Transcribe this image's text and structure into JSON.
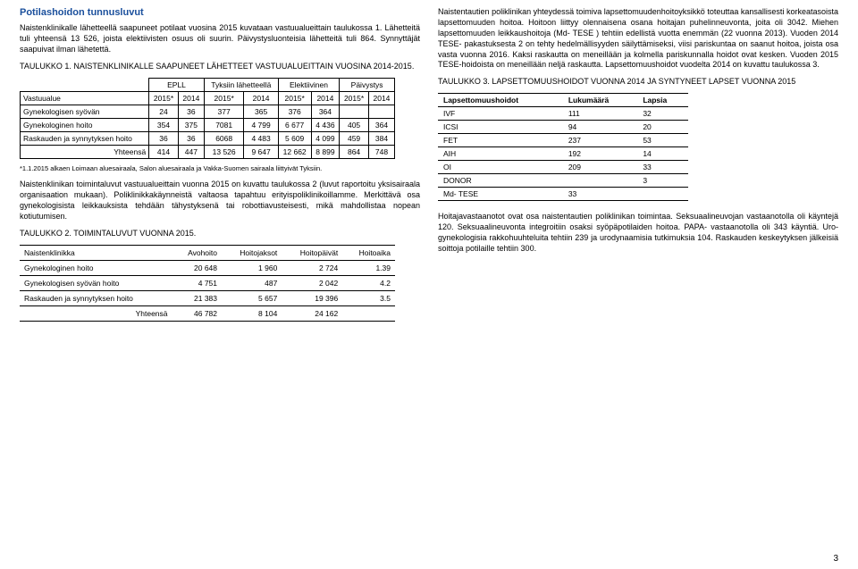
{
  "left": {
    "sectionTitle": "Potilashoidon tunnusluvut",
    "para1": "Naistenklinikalle lähetteellä saapuneet potilaat vuosina 2015 kuvataan vastuualueittain taulukossa 1. Lähetteitä tuli yhteensä 13 526, joista elektiivisten osuus oli suurin. Päivystysluonteisia lähetteitä tuli 864. Synnyttäjät saapuivat ilman lähetettä.",
    "caption1": "TAULUKKO 1. NAISTENKLINIKALLE SAAPUNEET LÄHETTEET VASTUUALUEITTAIN VUOSINA 2014-2015.",
    "tbl1": {
      "headGroups": [
        "EPLL",
        "Tyksiin lähetteellä",
        "Elektiivinen",
        "Päivystys"
      ],
      "headYears": [
        "2015*",
        "2014",
        "2015*",
        "2014",
        "2015*",
        "2014",
        "2015*",
        "2014"
      ],
      "rowLabelHead": "Vastuualue",
      "rows": [
        {
          "label": "Gynekologisen syövän",
          "cells": [
            "24",
            "36",
            "377",
            "365",
            "376",
            "364",
            "",
            ""
          ]
        },
        {
          "label": "Gynekologinen hoito",
          "cells": [
            "354",
            "375",
            "7081",
            "4 799",
            "6 677",
            "4 436",
            "405",
            "364"
          ]
        },
        {
          "label": "Raskauden ja synnytyksen hoito",
          "cells": [
            "36",
            "36",
            "6068",
            "4 483",
            "5 609",
            "4 099",
            "459",
            "384"
          ]
        }
      ],
      "totalLabel": "Yhteensä",
      "total": [
        "414",
        "447",
        "13 526",
        "9 647",
        "12 662",
        "8 899",
        "864",
        "748"
      ]
    },
    "footnote": "*1.1.2015 alkaen Loimaan aluesairaala, Salon aluesairaala ja Vakka-Suomen sairaala liittyivät Tyksiin.",
    "para2": "Naistenklinikan toimintaluvut vastuualueittain vuonna 2015 on kuvattu taulukossa 2 (luvut raportoitu yksisairaala organisaation mukaan). Poliklinikkakäynneistä valtaosa tapahtuu erityispoliklinikoillamme. Merkittävä osa gynekologisista leikkauksista tehdään tähystyksenä tai robottiavusteisesti, mikä mahdollistaa nopean kotiutumisen.",
    "caption2": "TAULUKKO 2. TOIMINTALUVUT VUONNA 2015.",
    "tbl2": {
      "head": [
        "Naistenklinikka",
        "Avohoito",
        "Hoitojaksot",
        "Hoitopäivät",
        "Hoitoaika"
      ],
      "rows": [
        {
          "label": "Gynekologinen hoito",
          "cells": [
            "20 648",
            "1 960",
            "2 724",
            "1.39"
          ]
        },
        {
          "label": "Gynekologisen syövän hoito",
          "cells": [
            "4 751",
            "487",
            "2 042",
            "4.2"
          ]
        },
        {
          "label": "Raskauden ja synnytyksen hoito",
          "cells": [
            "21 383",
            "5 657",
            "19 396",
            "3.5"
          ]
        }
      ],
      "totalLabel": "Yhteensä",
      "total": [
        "46 782",
        "8 104",
        "24 162",
        ""
      ]
    }
  },
  "right": {
    "para1": "Naistentautien poliklinikan yhteydessä toimiva lapsettomuudenhoitoyksikkö toteuttaa kansallisesti korkeatasoista lapsettomuuden hoitoa. Hoitoon liittyy olennaisena osana hoitajan puhelinneuvonta, joita oli 3042. Miehen lapsettomuuden leikkaushoitoja (Md- TESE ) tehtiin edellistä vuotta enemmän (22 vuonna 2013). Vuoden 2014 TESE- pakastuksesta 2 on tehty hedelmällisyyden säilyttämiseksi, viisi pariskuntaa on saanut hoitoa, joista osa vasta vuonna 2016. Kaksi raskautta on meneillään ja kolmella pariskunnalla hoidot ovat kesken. Vuoden 2015 TESE-hoidoista on meneillään neljä raskautta. Lapsettomuushoidot vuodelta 2014 on kuvattu taulukossa 3.",
    "caption3": "TAULUKKO 3. LAPSETTOMUUSHOIDOT VUONNA 2014 JA SYNTYNEET LAPSET VUONNA 2015",
    "tbl3": {
      "head": [
        "Lapsettomuushoidot",
        "Lukumäärä",
        "Lapsia"
      ],
      "rows": [
        {
          "label": "IVF",
          "n": "111",
          "c": "32"
        },
        {
          "label": "ICSI",
          "n": "94",
          "c": "20"
        },
        {
          "label": "FET",
          "n": "237",
          "c": "53"
        },
        {
          "label": "AIH",
          "n": "192",
          "c": "14"
        },
        {
          "label": "OI",
          "n": "209",
          "c": "33"
        },
        {
          "label": "DONOR",
          "n": "",
          "c": "3"
        },
        {
          "label": "Md- TESE",
          "n": "33",
          "c": ""
        }
      ]
    },
    "para2": "Hoitajavastaanotot ovat osa naistentautien poliklinikan toimintaa. Seksuaalineuvojan vastaanotolla oli käyntejä 120. Seksuaalineuvonta integroitiin osaksi syöpäpotilaiden hoitoa. PAPA- vastaanotolla oli 343 käyntiä. Uro-gynekologisia rakkohuuhteluita tehtiin 239 ja urodynaamisia tutkimuksia 104. Raskauden keskeytyksen jälkeisiä soittoja potilaille tehtiin 300."
  },
  "pageNumber": "3"
}
